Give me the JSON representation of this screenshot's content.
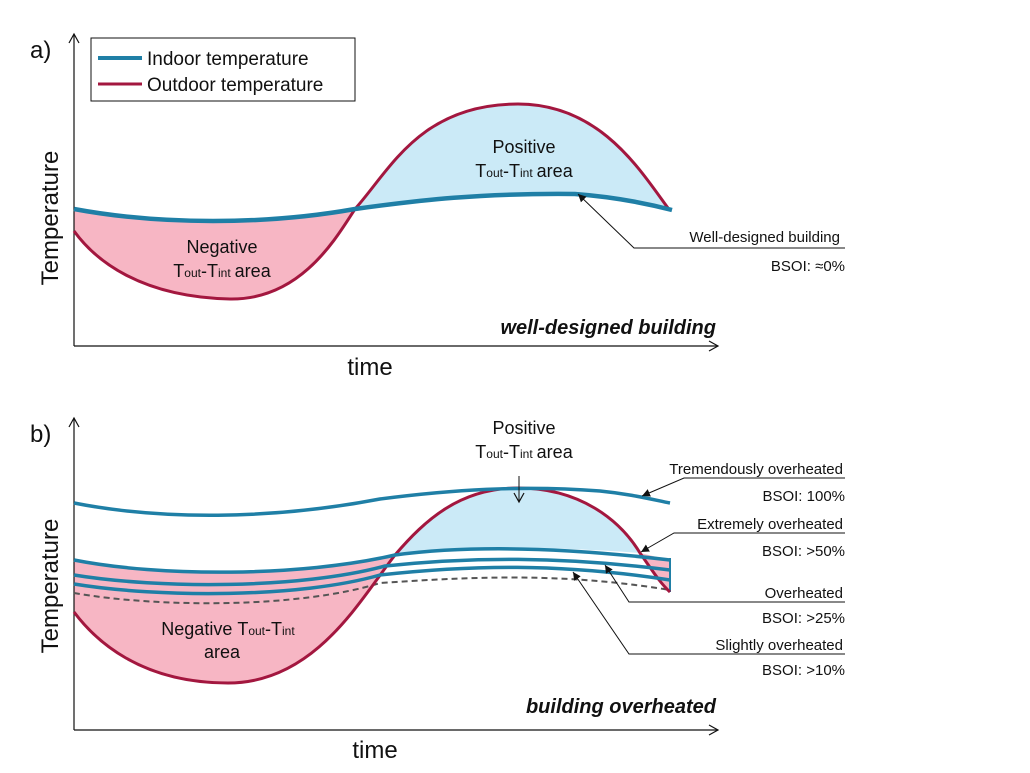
{
  "colors": {
    "indoor": "#1f7fa6",
    "outdoor": "#a3173f",
    "positive_fill": "#cbeaf7",
    "negative_fill": "#f7b6c4",
    "dashed": "#555555"
  },
  "legend": {
    "indoor": "Indoor temperature",
    "outdoor": "Outdoor temperature"
  },
  "area_notation": {
    "t": "T",
    "out": "out",
    "sep": "-",
    "int": "int",
    "area": "area"
  },
  "panel_a": {
    "label": "a)",
    "ylabel": "Temperature",
    "xlabel": "time",
    "positive_word": "Positive",
    "negative_word": "Negative",
    "annotation": "Well-designed building",
    "bsoi": "BSOI: ≈0%",
    "caption": "well-designed building"
  },
  "panel_b": {
    "label": "b)",
    "ylabel": "Temperature",
    "xlabel": "time",
    "positive_word": "Positive",
    "negative_word": "Negative",
    "negative_area_word": "area",
    "caption": "building overheated",
    "annotations": [
      {
        "label": "Tremendously overheated",
        "bsoi": "BSOI: 100%"
      },
      {
        "label": "Extremely overheated",
        "bsoi": "BSOI: >50%"
      },
      {
        "label": "Overheated",
        "bsoi": "BSOI: >25%"
      },
      {
        "label": "Slightly overheated",
        "bsoi": "BSOI: >10%"
      }
    ]
  }
}
